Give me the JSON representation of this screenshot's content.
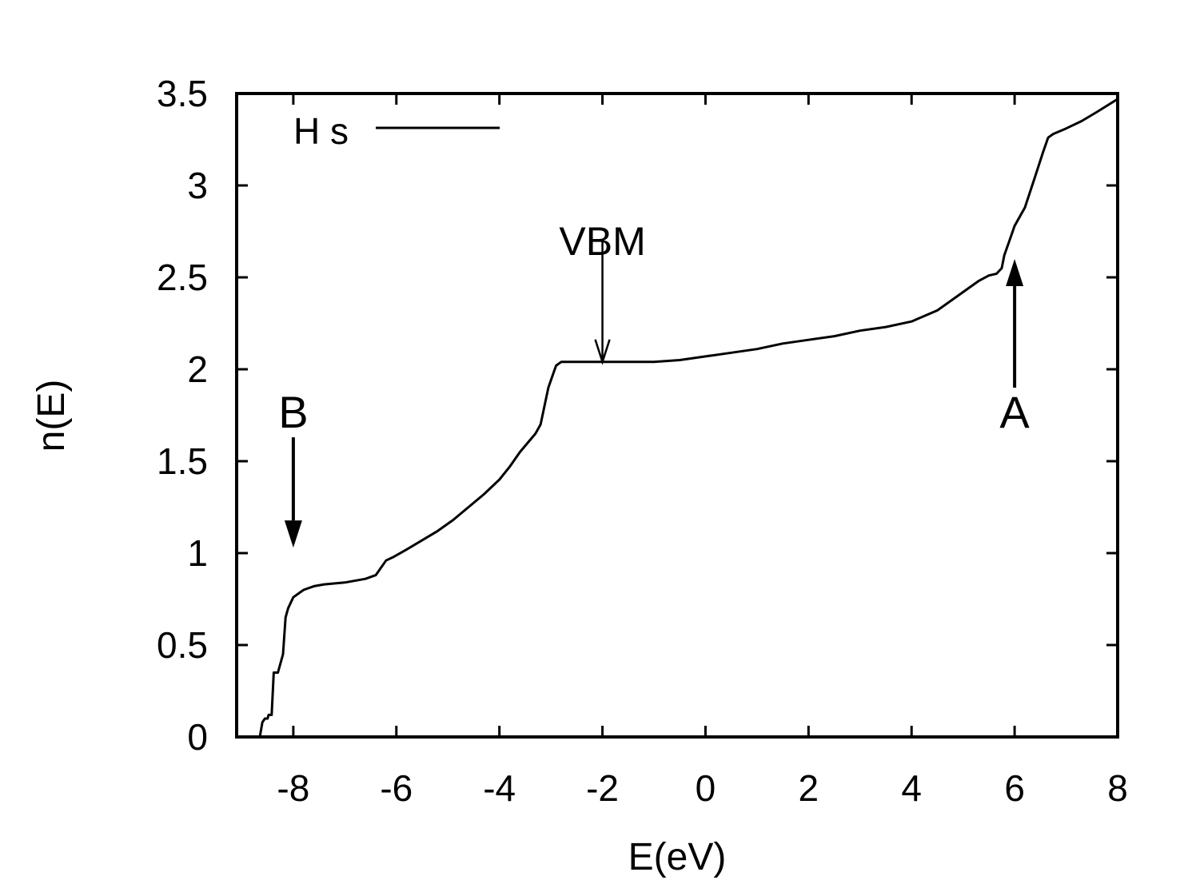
{
  "chart_data": {
    "type": "line",
    "title": "",
    "xlabel": "E(eV)",
    "ylabel": "n(E)",
    "xlim": [
      -9.1,
      8
    ],
    "ylim": [
      0,
      3.5
    ],
    "xticks": [
      -8,
      -6,
      -4,
      -2,
      0,
      2,
      4,
      6,
      8
    ],
    "yticks": [
      0,
      0.5,
      1,
      1.5,
      2,
      2.5,
      3,
      3.5
    ],
    "grid": false,
    "legend": {
      "position": "top-left",
      "entries": [
        "H s"
      ]
    },
    "series": [
      {
        "name": "H s",
        "color": "#000000",
        "x": [
          -8.65,
          -8.6,
          -8.55,
          -8.5,
          -8.48,
          -8.42,
          -8.38,
          -8.3,
          -8.2,
          -8.15,
          -8.1,
          -8.0,
          -7.9,
          -7.8,
          -7.6,
          -7.4,
          -7.0,
          -6.6,
          -6.4,
          -6.2,
          -6.05,
          -5.8,
          -5.5,
          -5.2,
          -4.9,
          -4.6,
          -4.3,
          -4.0,
          -3.8,
          -3.6,
          -3.45,
          -3.3,
          -3.2,
          -3.05,
          -2.95,
          -2.9,
          -2.8,
          -2.7,
          -2.6,
          -2.5,
          -2.3,
          -2.0,
          -1.5,
          -1.0,
          -0.5,
          0.0,
          0.5,
          1.0,
          1.5,
          2.0,
          2.5,
          3.0,
          3.5,
          4.0,
          4.5,
          5.0,
          5.3,
          5.5,
          5.65,
          5.75,
          5.8,
          5.9,
          6.0,
          6.2,
          6.4,
          6.55,
          6.65,
          6.75,
          7.0,
          7.3,
          7.6,
          8.0
        ],
        "y": [
          0.0,
          0.08,
          0.1,
          0.1,
          0.12,
          0.12,
          0.35,
          0.35,
          0.45,
          0.65,
          0.7,
          0.76,
          0.78,
          0.8,
          0.82,
          0.83,
          0.84,
          0.86,
          0.88,
          0.96,
          0.98,
          1.02,
          1.07,
          1.12,
          1.18,
          1.25,
          1.32,
          1.4,
          1.47,
          1.55,
          1.6,
          1.65,
          1.7,
          1.9,
          1.98,
          2.02,
          2.04,
          2.04,
          2.04,
          2.04,
          2.04,
          2.04,
          2.04,
          2.04,
          2.05,
          2.07,
          2.09,
          2.11,
          2.14,
          2.16,
          2.18,
          2.21,
          2.23,
          2.26,
          2.32,
          2.42,
          2.48,
          2.51,
          2.52,
          2.55,
          2.62,
          2.7,
          2.78,
          2.88,
          3.05,
          3.18,
          3.26,
          3.28,
          3.31,
          3.35,
          3.4,
          3.47
        ]
      }
    ],
    "annotations": [
      {
        "text": "VBM",
        "x": -2.0,
        "y_text": 2.7,
        "arrow_from": 2.7,
        "arrow_to": 2.04,
        "style": "open"
      },
      {
        "text": "B",
        "x": -8.0,
        "y_text": 1.77,
        "arrow_from": 1.63,
        "arrow_to": 1.03,
        "style": "filled"
      },
      {
        "text": "A",
        "x": 6.0,
        "y_text": 1.77,
        "arrow_from": 1.9,
        "arrow_to": 2.6,
        "style": "filled"
      }
    ]
  }
}
